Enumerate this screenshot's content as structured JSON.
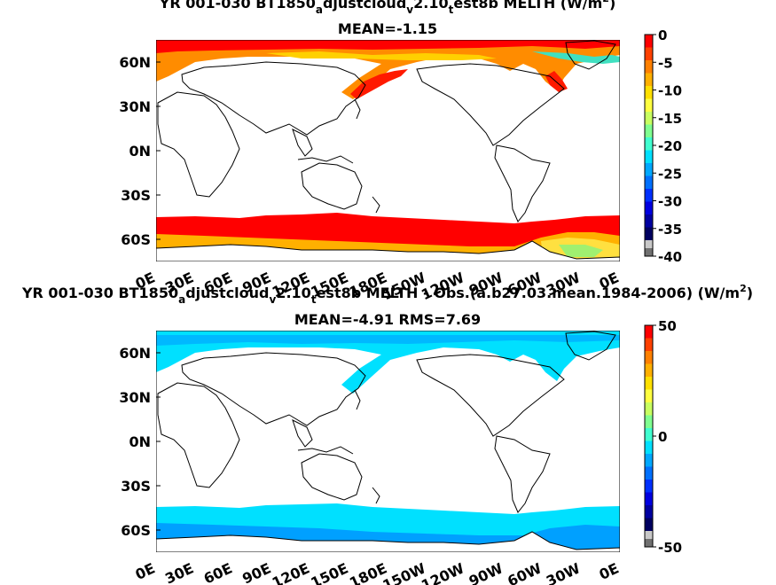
{
  "chart_data": [
    {
      "type": "heatmap",
      "title": "YR 001-030 BT1850_adjustcloud_v2.10_test8b  MELTH (W/m²)",
      "title_parts": {
        "pre": "YR 001-030 BT1850",
        "sub1": "a",
        "mid1": "djustcloud",
        "sub2": "v",
        "mid2": "2.10",
        "sub3": "t",
        "post": "est8b  MELTH (W/m",
        "sup": "2",
        "end": ")"
      },
      "subtitle": "MEAN=-1.15",
      "y_ticks": [
        "60N",
        "30N",
        "0N",
        "30S",
        "60S"
      ],
      "x_ticks": [
        "0E",
        "30E",
        "60E",
        "90E",
        "120E",
        "150E",
        "180E",
        "150W",
        "120W",
        "90W",
        "60W",
        "30W",
        "0E"
      ],
      "colorbar": {
        "labels": [
          "0",
          "-5",
          "-10",
          "-15",
          "-20",
          "-25",
          "-30",
          "-35",
          "-40"
        ],
        "range": [
          -40,
          0
        ],
        "colors": [
          "#ff0000",
          "#ff4000",
          "#ff8000",
          "#ffb000",
          "#ffe000",
          "#ffff40",
          "#c8ff60",
          "#80ff90",
          "#40ffd0",
          "#00e0ff",
          "#00a8ff",
          "#0070ff",
          "#0030ff",
          "#0000e0",
          "#0000a0",
          "#000060"
        ]
      }
    },
    {
      "type": "heatmap",
      "title": "YR 001-030 BT1850_adjustcloud_v2.10_test8b MELTH - Obs.(a.b27.03.mean.1984-2006) (W/m²)",
      "title_parts": {
        "pre": "YR 001-030 BT1850",
        "sub1": "a",
        "mid1": "djustcloud",
        "sub2": "v",
        "mid2": "2.10",
        "sub3": "t",
        "post": "est8b MELTH - Obs.(a.b27.03.mean.1984-2006) (W/m",
        "sup": "2",
        "end": ")"
      },
      "subtitle": "MEAN=-4.91 RMS=7.69",
      "y_ticks": [
        "60N",
        "30N",
        "0N",
        "30S",
        "60S"
      ],
      "x_ticks": [
        "0E",
        "30E",
        "60E",
        "90E",
        "120E",
        "150E",
        "180E",
        "150W",
        "120W",
        "90W",
        "60W",
        "30W",
        "0E"
      ],
      "colorbar": {
        "labels": [
          "50",
          "0",
          "-50"
        ],
        "range": [
          -50,
          50
        ],
        "colors": [
          "#ff0000",
          "#ff4000",
          "#ff8000",
          "#ffb000",
          "#ffe000",
          "#ffff40",
          "#c8ff60",
          "#80ff90",
          "#40ffd0",
          "#00e0ff",
          "#00a8ff",
          "#0070ff",
          "#0030ff",
          "#0000e0",
          "#0000a0",
          "#000060"
        ]
      }
    }
  ]
}
